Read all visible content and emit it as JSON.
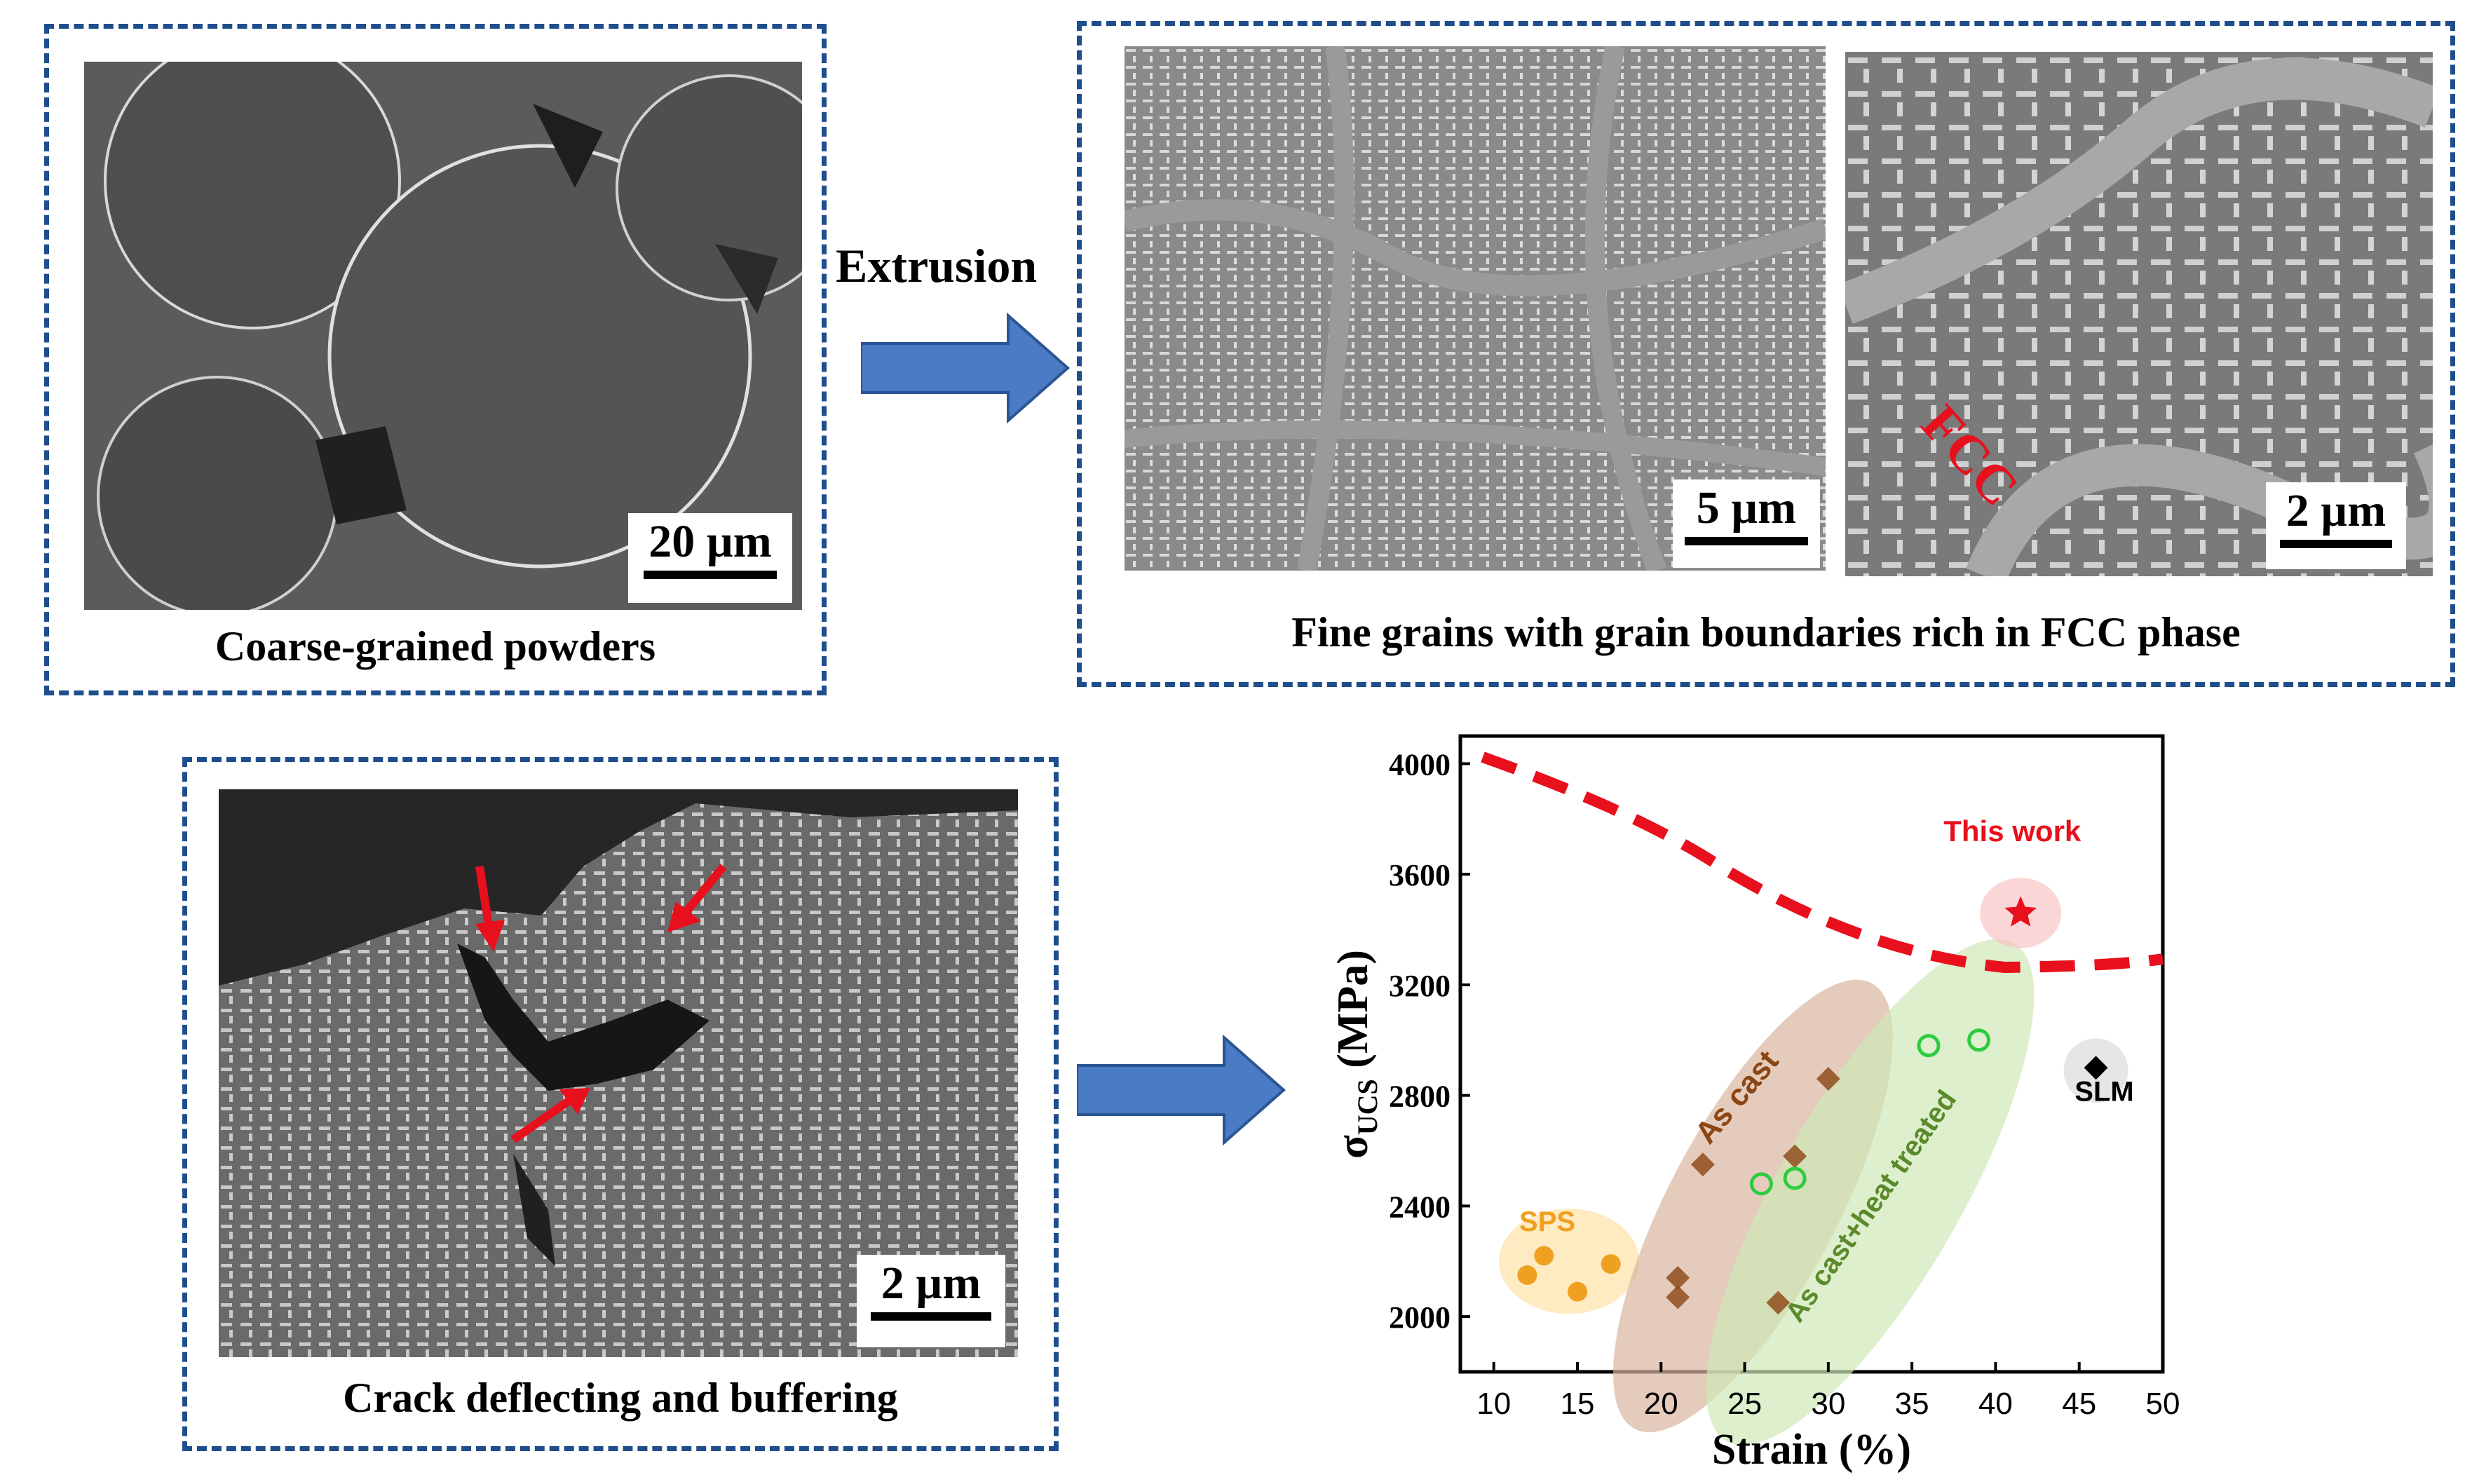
{
  "panels": {
    "powder": {
      "scale": "20 µm",
      "caption": "Coarse-grained powders"
    },
    "extrusion_label": "Extrusion",
    "fine": {
      "scale_left": "5 µm",
      "scale_right": "2 µm",
      "fcc_label": "FCC",
      "caption": "Fine grains with grain boundaries rich in FCC phase"
    },
    "crack": {
      "scale": "2 µm",
      "caption": "Crack deflecting and buffering"
    }
  },
  "colors": {
    "border": "#1f4e8c",
    "arrow": "#4a7bc4",
    "red": "#e8101c"
  },
  "chart_data": {
    "type": "scatter",
    "xlabel": "Strain (%)",
    "ylabel_main": "σ",
    "ylabel_sub": "UCS",
    "ylabel_unit": " (MPa)",
    "xlim": [
      8,
      50
    ],
    "ylim": [
      1800,
      4100
    ],
    "xticks": [
      10,
      15,
      20,
      25,
      30,
      35,
      40,
      45,
      50
    ],
    "yticks": [
      2000,
      2400,
      2800,
      3200,
      3600,
      4000
    ],
    "groups": [
      {
        "name": "SPS",
        "color": "#f0a020",
        "points": [
          [
            12,
            2150
          ],
          [
            13,
            2220
          ],
          [
            15,
            2090
          ],
          [
            17,
            2190
          ]
        ]
      },
      {
        "name": "As cast",
        "color": "#8b4513",
        "points": [
          [
            21,
            2140
          ],
          [
            22.5,
            2550
          ],
          [
            30,
            2860
          ],
          [
            21,
            2070
          ],
          [
            27,
            2050
          ],
          [
            28,
            2580
          ]
        ]
      },
      {
        "name": "As cast+heat treated",
        "color": "#5a8a2a",
        "points": [
          [
            26,
            2480
          ],
          [
            28,
            2500
          ],
          [
            36,
            2980
          ],
          [
            39,
            3000
          ]
        ]
      },
      {
        "name": "SLM",
        "color": "#000000",
        "points": [
          [
            46,
            2900
          ]
        ]
      },
      {
        "name": "This work",
        "color": "#e8101c",
        "points": [
          [
            41.5,
            3460
          ]
        ]
      }
    ]
  }
}
